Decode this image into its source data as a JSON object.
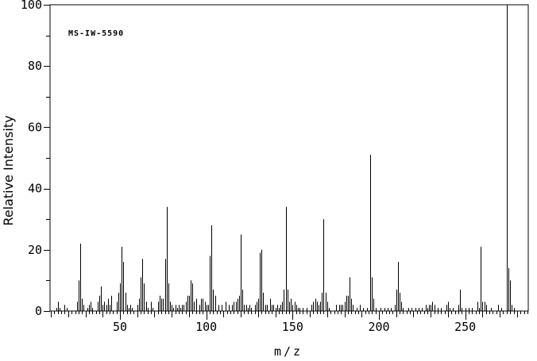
{
  "annotation": "MS-IW-5590",
  "colors": {
    "foreground": "#000000",
    "background": "#ffffff"
  },
  "chart_data": {
    "type": "bar",
    "title": "MS-IW-5590",
    "xlabel": "m/z",
    "ylabel": "Relative Intensity",
    "xlim": [
      9.5,
      286.5
    ],
    "ylim": [
      0,
      100
    ],
    "grid": false,
    "x_label_ticks": [
      50,
      100,
      150,
      200,
      250
    ],
    "x_medium_tick_step": 10,
    "x_minor_tick_step": 2,
    "y_tick_step": 10,
    "y_label_ticks": [
      0,
      20,
      40,
      60,
      80,
      100
    ],
    "peaks": [
      [
        13,
        1
      ],
      [
        14,
        3
      ],
      [
        15,
        1
      ],
      [
        18,
        2
      ],
      [
        19,
        1
      ],
      [
        25,
        3
      ],
      [
        26,
        10
      ],
      [
        27,
        22
      ],
      [
        28,
        4
      ],
      [
        29,
        2
      ],
      [
        31,
        1
      ],
      [
        32,
        2
      ],
      [
        33,
        3
      ],
      [
        34,
        1
      ],
      [
        37,
        3
      ],
      [
        38,
        5
      ],
      [
        39,
        8
      ],
      [
        40,
        2
      ],
      [
        41,
        3
      ],
      [
        42,
        2
      ],
      [
        43,
        4
      ],
      [
        44,
        2
      ],
      [
        45,
        5
      ],
      [
        48,
        3
      ],
      [
        49,
        6
      ],
      [
        50,
        9
      ],
      [
        51,
        21
      ],
      [
        52,
        16
      ],
      [
        53,
        6
      ],
      [
        54,
        2
      ],
      [
        55,
        1
      ],
      [
        56,
        2
      ],
      [
        57,
        1
      ],
      [
        60,
        2
      ],
      [
        61,
        4
      ],
      [
        62,
        11
      ],
      [
        63,
        17
      ],
      [
        64,
        9
      ],
      [
        65,
        3
      ],
      [
        66,
        1
      ],
      [
        68,
        3
      ],
      [
        69,
        1
      ],
      [
        72,
        3
      ],
      [
        73,
        5
      ],
      [
        74,
        4
      ],
      [
        75,
        4
      ],
      [
        76,
        17
      ],
      [
        77,
        34
      ],
      [
        78,
        9
      ],
      [
        79,
        3
      ],
      [
        80,
        2
      ],
      [
        81,
        1
      ],
      [
        82,
        2
      ],
      [
        83,
        1
      ],
      [
        84,
        2
      ],
      [
        85,
        1
      ],
      [
        86,
        2
      ],
      [
        87,
        2
      ],
      [
        88,
        3
      ],
      [
        89,
        5
      ],
      [
        90,
        5
      ],
      [
        91,
        10
      ],
      [
        92,
        9
      ],
      [
        93,
        3
      ],
      [
        94,
        4
      ],
      [
        96,
        2
      ],
      [
        97,
        4
      ],
      [
        98,
        4
      ],
      [
        99,
        3
      ],
      [
        100,
        2
      ],
      [
        101,
        2
      ],
      [
        102,
        18
      ],
      [
        103,
        28
      ],
      [
        104,
        7
      ],
      [
        105,
        5
      ],
      [
        107,
        2
      ],
      [
        109,
        2
      ],
      [
        111,
        3
      ],
      [
        113,
        2
      ],
      [
        115,
        2
      ],
      [
        116,
        3
      ],
      [
        117,
        3
      ],
      [
        118,
        4
      ],
      [
        119,
        5
      ],
      [
        120,
        25
      ],
      [
        121,
        7
      ],
      [
        122,
        2
      ],
      [
        123,
        2
      ],
      [
        124,
        1
      ],
      [
        125,
        2
      ],
      [
        126,
        1
      ],
      [
        128,
        2
      ],
      [
        129,
        3
      ],
      [
        130,
        4
      ],
      [
        131,
        19
      ],
      [
        132,
        20
      ],
      [
        133,
        6
      ],
      [
        134,
        2
      ],
      [
        135,
        2
      ],
      [
        137,
        4
      ],
      [
        138,
        2
      ],
      [
        139,
        2
      ],
      [
        140,
        1
      ],
      [
        141,
        2
      ],
      [
        142,
        1
      ],
      [
        143,
        2
      ],
      [
        144,
        3
      ],
      [
        145,
        7
      ],
      [
        146,
        34
      ],
      [
        147,
        7
      ],
      [
        148,
        3
      ],
      [
        149,
        4
      ],
      [
        150,
        2
      ],
      [
        151,
        3
      ],
      [
        152,
        2
      ],
      [
        153,
        1
      ],
      [
        154,
        1
      ],
      [
        156,
        1
      ],
      [
        158,
        1
      ],
      [
        161,
        2
      ],
      [
        162,
        3
      ],
      [
        163,
        4
      ],
      [
        164,
        3
      ],
      [
        165,
        2
      ],
      [
        166,
        3
      ],
      [
        167,
        6
      ],
      [
        168,
        30
      ],
      [
        169,
        6
      ],
      [
        170,
        3
      ],
      [
        171,
        1
      ],
      [
        175,
        2
      ],
      [
        177,
        2
      ],
      [
        178,
        2
      ],
      [
        179,
        2
      ],
      [
        180,
        3
      ],
      [
        181,
        5
      ],
      [
        182,
        5
      ],
      [
        183,
        11
      ],
      [
        184,
        4
      ],
      [
        185,
        2
      ],
      [
        187,
        1
      ],
      [
        189,
        2
      ],
      [
        191,
        1
      ],
      [
        193,
        1
      ],
      [
        195,
        51
      ],
      [
        196,
        11
      ],
      [
        197,
        4
      ],
      [
        198,
        1
      ],
      [
        201,
        1
      ],
      [
        203,
        1
      ],
      [
        205,
        1
      ],
      [
        207,
        1
      ],
      [
        209,
        2
      ],
      [
        210,
        7
      ],
      [
        211,
        16
      ],
      [
        212,
        6
      ],
      [
        213,
        3
      ],
      [
        214,
        1
      ],
      [
        217,
        1
      ],
      [
        219,
        1
      ],
      [
        221,
        1
      ],
      [
        223,
        1
      ],
      [
        225,
        1
      ],
      [
        227,
        2
      ],
      [
        228,
        1
      ],
      [
        229,
        2
      ],
      [
        230,
        2
      ],
      [
        231,
        3
      ],
      [
        232,
        2
      ],
      [
        234,
        1
      ],
      [
        236,
        1
      ],
      [
        239,
        2
      ],
      [
        240,
        3
      ],
      [
        241,
        1
      ],
      [
        243,
        1
      ],
      [
        246,
        2
      ],
      [
        247,
        7
      ],
      [
        248,
        1
      ],
      [
        250,
        1
      ],
      [
        252,
        1
      ],
      [
        254,
        1
      ],
      [
        257,
        3
      ],
      [
        258,
        1
      ],
      [
        259,
        21
      ],
      [
        260,
        3
      ],
      [
        261,
        3
      ],
      [
        262,
        2
      ],
      [
        265,
        1
      ],
      [
        269,
        2
      ],
      [
        271,
        1
      ],
      [
        274,
        100
      ],
      [
        275,
        14
      ],
      [
        276,
        10
      ],
      [
        277,
        2
      ],
      [
        278,
        1
      ]
    ]
  }
}
